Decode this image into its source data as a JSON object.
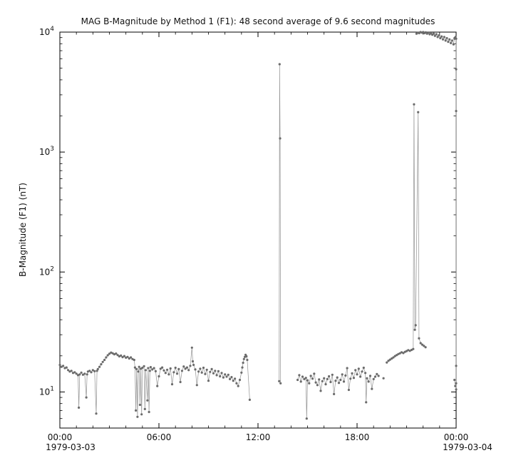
{
  "chart_data": {
    "type": "scatter",
    "title": "MAG  B-Magnitude by Method 1 (F1): 48 second average of 9.6 second magnitudes",
    "ylabel": "B-Magnitude (F1) (nT)",
    "x_date_left": "1979-03-03",
    "x_date_right": "1979-03-04",
    "x_range_hours": [
      0,
      24
    ],
    "x_ticks": [
      {
        "hour": 0,
        "label": "00:00"
      },
      {
        "hour": 6,
        "label": "06:00"
      },
      {
        "hour": 12,
        "label": "12:00"
      },
      {
        "hour": 18,
        "label": "18:00"
      },
      {
        "hour": 24,
        "label": "00:00"
      }
    ],
    "y_scale": "log",
    "y_range": [
      5,
      10000
    ],
    "y_major_ticks": [
      10,
      100,
      1000,
      10000
    ],
    "grid": false,
    "legend": "none",
    "marker_color": "#6b6b6b",
    "line_color": "#999999",
    "axis_color": "#000000",
    "segments": [
      {
        "name": "morning-baseline",
        "points": [
          [
            0,
            16.8
          ],
          [
            0.1,
            16.2
          ],
          [
            0.2,
            16.5
          ],
          [
            0.3,
            15.8
          ],
          [
            0.4,
            16
          ],
          [
            0.5,
            15.2
          ],
          [
            0.6,
            14.8
          ],
          [
            0.7,
            15
          ],
          [
            0.8,
            14.4
          ],
          [
            0.9,
            14.6
          ],
          [
            1,
            14.2
          ],
          [
            1.1,
            13.8
          ],
          [
            1.15,
            7.4
          ],
          [
            1.2,
            14
          ],
          [
            1.3,
            14.5
          ],
          [
            1.4,
            13.9
          ],
          [
            1.5,
            14.2
          ],
          [
            1.6,
            9
          ],
          [
            1.65,
            14
          ],
          [
            1.7,
            14.8
          ],
          [
            1.8,
            15
          ],
          [
            1.9,
            14.6
          ],
          [
            2,
            15.2
          ],
          [
            2.1,
            14.9
          ],
          [
            2.2,
            6.6
          ],
          [
            2.25,
            15
          ],
          [
            2.3,
            15.5
          ],
          [
            2.4,
            16.2
          ],
          [
            2.5,
            17
          ],
          [
            2.6,
            17.8
          ],
          [
            2.7,
            18.5
          ],
          [
            2.8,
            19.4
          ],
          [
            2.9,
            20.2
          ],
          [
            3,
            20.8
          ],
          [
            3.1,
            21.3
          ],
          [
            3.2,
            21
          ],
          [
            3.3,
            20.6
          ],
          [
            3.4,
            20.9
          ],
          [
            3.5,
            20.3
          ],
          [
            3.6,
            19.8
          ],
          [
            3.7,
            20.1
          ],
          [
            3.8,
            19.5
          ],
          [
            3.9,
            19.9
          ],
          [
            4,
            19.3
          ],
          [
            4.1,
            19.6
          ],
          [
            4.2,
            19
          ],
          [
            4.3,
            19.4
          ],
          [
            4.4,
            18.8
          ],
          [
            4.5,
            18.5
          ],
          [
            4.55,
            16
          ],
          [
            4.6,
            7
          ],
          [
            4.65,
            15.5
          ],
          [
            4.7,
            6.2
          ],
          [
            4.75,
            14.8
          ],
          [
            4.8,
            16.2
          ],
          [
            4.85,
            7.8
          ],
          [
            4.9,
            15.6
          ],
          [
            4.95,
            6.5
          ],
          [
            5,
            15.9
          ],
          [
            5.1,
            16.4
          ],
          [
            5.15,
            7.2
          ],
          [
            5.2,
            15.2
          ],
          [
            5.3,
            8.5
          ],
          [
            5.35,
            15.8
          ],
          [
            5.4,
            6.8
          ],
          [
            5.45,
            15
          ],
          [
            5.5,
            16.1
          ],
          [
            5.6,
            15.4
          ],
          [
            5.7,
            15.8
          ],
          [
            5.8,
            14.9
          ],
          [
            5.9,
            11.2
          ],
          [
            6,
            13.5
          ],
          [
            6.1,
            15.6
          ],
          [
            6.2,
            16
          ],
          [
            6.3,
            15.1
          ],
          [
            6.4,
            14.4
          ],
          [
            6.5,
            15.3
          ],
          [
            6.6,
            14
          ],
          [
            6.7,
            15.7
          ],
          [
            6.8,
            11.6
          ],
          [
            6.9,
            14.6
          ],
          [
            7,
            15.9
          ],
          [
            7.1,
            14.2
          ],
          [
            7.2,
            15.5
          ],
          [
            7.3,
            12.1
          ],
          [
            7.4,
            15
          ],
          [
            7.5,
            16.3
          ],
          [
            7.6,
            15.6
          ],
          [
            7.7,
            16
          ],
          [
            7.8,
            15.2
          ],
          [
            7.9,
            16.5
          ],
          [
            8,
            23.4
          ],
          [
            8.05,
            18
          ],
          [
            8.1,
            16.8
          ],
          [
            8.2,
            15.4
          ],
          [
            8.3,
            11.4
          ],
          [
            8.4,
            14.8
          ],
          [
            8.5,
            15.6
          ],
          [
            8.6,
            14.5
          ],
          [
            8.7,
            15.9
          ],
          [
            8.8,
            14.1
          ],
          [
            8.9,
            15.3
          ],
          [
            9,
            12.4
          ],
          [
            9.1,
            14.7
          ],
          [
            9.2,
            15.5
          ],
          [
            9.3,
            14.3
          ],
          [
            9.4,
            15
          ],
          [
            9.5,
            13.8
          ],
          [
            9.6,
            14.9
          ],
          [
            9.7,
            13.5
          ],
          [
            9.8,
            14.4
          ],
          [
            9.9,
            13.2
          ],
          [
            10,
            14
          ],
          [
            10.1,
            13.4
          ],
          [
            10.2,
            13.9
          ],
          [
            10.3,
            12.8
          ],
          [
            10.4,
            13.3
          ],
          [
            10.5,
            12.4
          ],
          [
            10.6,
            12.9
          ],
          [
            10.7,
            11.8
          ],
          [
            10.8,
            11.2
          ],
          [
            10.9,
            12.6
          ],
          [
            11,
            14.5
          ],
          [
            11.05,
            16
          ],
          [
            11.1,
            17.5
          ],
          [
            11.15,
            18.8
          ],
          [
            11.2,
            19.6
          ],
          [
            11.25,
            20.4
          ],
          [
            11.3,
            19.8
          ],
          [
            11.35,
            18.5
          ],
          [
            11.5,
            8.6
          ]
        ]
      },
      {
        "name": "noon-spike",
        "points": [
          [
            13.28,
            12.3
          ],
          [
            13.31,
            5400
          ],
          [
            13.34,
            1300
          ],
          [
            13.37,
            11.8
          ]
        ]
      },
      {
        "name": "afternoon-baseline",
        "points": [
          [
            14.4,
            12.6
          ],
          [
            14.5,
            13.8
          ],
          [
            14.6,
            12.2
          ],
          [
            14.7,
            13.4
          ],
          [
            14.8,
            12.8
          ],
          [
            14.9,
            13.1
          ],
          [
            14.95,
            6
          ],
          [
            15,
            12.5
          ],
          [
            15.1,
            11.8
          ],
          [
            15.2,
            13.6
          ],
          [
            15.3,
            12.9
          ],
          [
            15.4,
            14.2
          ],
          [
            15.5,
            12
          ],
          [
            15.6,
            11.4
          ],
          [
            15.7,
            12.7
          ],
          [
            15.8,
            10.2
          ],
          [
            15.9,
            12.3
          ],
          [
            16,
            13
          ],
          [
            16.1,
            11.6
          ],
          [
            16.2,
            12.8
          ],
          [
            16.3,
            13.5
          ],
          [
            16.4,
            12.1
          ],
          [
            16.5,
            13.9
          ],
          [
            16.6,
            9.6
          ],
          [
            16.7,
            12.4
          ],
          [
            16.8,
            13.2
          ],
          [
            16.9,
            11.9
          ],
          [
            17,
            12.6
          ],
          [
            17.1,
            14
          ],
          [
            17.2,
            12.2
          ],
          [
            17.3,
            13.7
          ],
          [
            17.4,
            15.8
          ],
          [
            17.5,
            10.4
          ],
          [
            17.6,
            12.9
          ],
          [
            17.7,
            14.3
          ],
          [
            17.8,
            13.1
          ],
          [
            17.9,
            15.2
          ],
          [
            18,
            14
          ],
          [
            18.1,
            15.6
          ],
          [
            18.2,
            13.4
          ],
          [
            18.3,
            14.8
          ],
          [
            18.4,
            15.9
          ],
          [
            18.5,
            14.4
          ],
          [
            18.55,
            8.2
          ],
          [
            18.6,
            13
          ],
          [
            18.7,
            12.2
          ],
          [
            18.8,
            13.6
          ],
          [
            18.9,
            10.6
          ],
          [
            19,
            12.8
          ],
          [
            19.1,
            13.4
          ],
          [
            19.2,
            14.1
          ],
          [
            19.3,
            13.6
          ]
        ]
      },
      {
        "name": "isolated-point-a",
        "points": [
          [
            19.6,
            13
          ]
        ]
      },
      {
        "name": "isolated-point-b",
        "points": [
          [
            19.8,
            17.6
          ]
        ]
      },
      {
        "name": "evening-rise-and-spikes",
        "points": [
          [
            19.9,
            18.2
          ],
          [
            20,
            18.6
          ],
          [
            20.1,
            19
          ],
          [
            20.2,
            19.4
          ],
          [
            20.3,
            19.9
          ],
          [
            20.4,
            20.3
          ],
          [
            20.5,
            20.7
          ],
          [
            20.6,
            21
          ],
          [
            20.7,
            21.4
          ],
          [
            20.8,
            21.1
          ],
          [
            20.9,
            21.6
          ],
          [
            21,
            21.9
          ],
          [
            21.1,
            22.3
          ],
          [
            21.2,
            22
          ],
          [
            21.3,
            22.4
          ],
          [
            21.4,
            22.8
          ],
          [
            21.45,
            2500
          ],
          [
            21.5,
            33
          ],
          [
            21.55,
            36
          ],
          [
            21.7,
            2150
          ],
          [
            21.75,
            28
          ],
          [
            21.85,
            25.5
          ],
          [
            21.95,
            24.8
          ],
          [
            22.05,
            24.2
          ],
          [
            22.15,
            23.6
          ]
        ]
      },
      {
        "name": "late-high-cluster",
        "points": [
          [
            21.6,
            9700
          ],
          [
            21.68,
            9900
          ],
          [
            21.76,
            9800
          ],
          [
            21.84,
            10000
          ],
          [
            21.92,
            9900
          ],
          [
            22,
            10000
          ],
          [
            22.08,
            9800
          ],
          [
            22.16,
            9950
          ],
          [
            22.24,
            9700
          ],
          [
            22.32,
            9900
          ],
          [
            22.4,
            9600
          ],
          [
            22.48,
            9800
          ],
          [
            22.56,
            9500
          ],
          [
            22.64,
            9700
          ],
          [
            22.72,
            9300
          ],
          [
            22.8,
            9600
          ],
          [
            22.88,
            9100
          ],
          [
            22.96,
            9400
          ],
          [
            23.04,
            8900
          ],
          [
            23.12,
            9200
          ],
          [
            23.2,
            8700
          ],
          [
            23.28,
            9100
          ],
          [
            23.36,
            8500
          ],
          [
            23.44,
            8900
          ],
          [
            23.52,
            8300
          ],
          [
            23.6,
            8700
          ],
          [
            23.68,
            8100
          ],
          [
            23.76,
            8500
          ],
          [
            23.84,
            7900
          ],
          [
            23.9,
            8800
          ],
          [
            23.96,
            9100
          ]
        ]
      },
      {
        "name": "midnight-dropline",
        "points": [
          [
            24,
            8800
          ],
          [
            24,
            4900
          ],
          [
            24,
            2200
          ],
          [
            24,
            16.5
          ],
          [
            24,
            11.8
          ],
          [
            24,
            10.5
          ]
        ]
      },
      {
        "name": "bottom-right-pair",
        "points": [
          [
            23.9,
            12.6
          ],
          [
            23.95,
            11.2
          ]
        ]
      }
    ]
  }
}
